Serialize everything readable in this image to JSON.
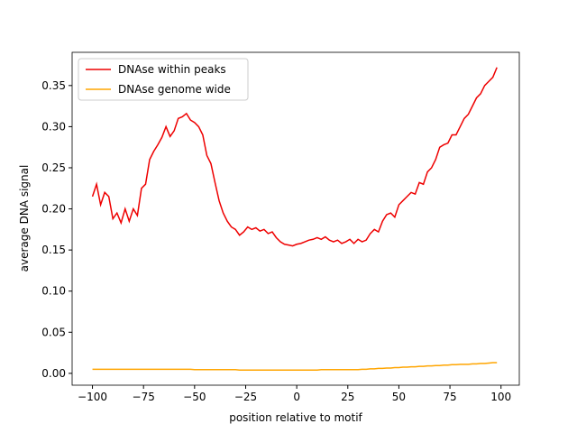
{
  "chart_data": {
    "type": "line",
    "xlabel": "position relative to motif",
    "ylabel": "average DNA signal",
    "x": [
      -100,
      -98,
      -96,
      -94,
      -92,
      -90,
      -88,
      -86,
      -84,
      -82,
      -80,
      -78,
      -76,
      -74,
      -72,
      -70,
      -68,
      -66,
      -64,
      -62,
      -60,
      -58,
      -56,
      -54,
      -52,
      -50,
      -48,
      -46,
      -44,
      -42,
      -40,
      -38,
      -36,
      -34,
      -32,
      -30,
      -28,
      -26,
      -24,
      -22,
      -20,
      -18,
      -16,
      -14,
      -12,
      -10,
      -8,
      -6,
      -4,
      -2,
      0,
      2,
      4,
      6,
      8,
      10,
      12,
      14,
      16,
      18,
      20,
      22,
      24,
      26,
      28,
      30,
      32,
      34,
      36,
      38,
      40,
      42,
      44,
      46,
      48,
      50,
      52,
      54,
      56,
      58,
      60,
      62,
      64,
      66,
      68,
      70,
      72,
      74,
      76,
      78,
      80,
      82,
      84,
      86,
      88,
      90,
      92,
      94,
      96,
      98
    ],
    "series": [
      {
        "name": "DNAse within peaks",
        "color": "#ee0000",
        "values": [
          0.215,
          0.23,
          0.205,
          0.22,
          0.215,
          0.188,
          0.195,
          0.183,
          0.2,
          0.185,
          0.2,
          0.192,
          0.225,
          0.23,
          0.26,
          0.27,
          0.278,
          0.287,
          0.3,
          0.288,
          0.295,
          0.31,
          0.312,
          0.316,
          0.308,
          0.305,
          0.3,
          0.29,
          0.265,
          0.255,
          0.232,
          0.21,
          0.195,
          0.185,
          0.178,
          0.175,
          0.168,
          0.172,
          0.178,
          0.175,
          0.177,
          0.173,
          0.175,
          0.17,
          0.172,
          0.165,
          0.16,
          0.157,
          0.156,
          0.155,
          0.157,
          0.158,
          0.16,
          0.162,
          0.163,
          0.165,
          0.163,
          0.166,
          0.162,
          0.16,
          0.162,
          0.158,
          0.16,
          0.163,
          0.158,
          0.163,
          0.16,
          0.162,
          0.17,
          0.175,
          0.172,
          0.185,
          0.193,
          0.195,
          0.19,
          0.205,
          0.21,
          0.215,
          0.22,
          0.218,
          0.232,
          0.23,
          0.245,
          0.25,
          0.26,
          0.275,
          0.278,
          0.28,
          0.29,
          0.29,
          0.3,
          0.31,
          0.315,
          0.325,
          0.335,
          0.34,
          0.35,
          0.355,
          0.36,
          0.372
        ]
      },
      {
        "name": "DNAse genome wide",
        "color": "#ffa500",
        "values": [
          0.005,
          0.005,
          0.005,
          0.005,
          0.005,
          0.005,
          0.005,
          0.005,
          0.005,
          0.005,
          0.005,
          0.005,
          0.005,
          0.005,
          0.005,
          0.005,
          0.005,
          0.005,
          0.005,
          0.005,
          0.005,
          0.005,
          0.005,
          0.005,
          0.005,
          0.0045,
          0.0045,
          0.0045,
          0.0045,
          0.0045,
          0.0045,
          0.0045,
          0.0045,
          0.0045,
          0.0045,
          0.0045,
          0.004,
          0.004,
          0.004,
          0.004,
          0.004,
          0.004,
          0.004,
          0.004,
          0.004,
          0.004,
          0.004,
          0.004,
          0.004,
          0.004,
          0.004,
          0.004,
          0.004,
          0.004,
          0.004,
          0.004,
          0.0045,
          0.0045,
          0.0045,
          0.0045,
          0.0045,
          0.0045,
          0.0045,
          0.0045,
          0.0045,
          0.0045,
          0.005,
          0.005,
          0.0055,
          0.0055,
          0.006,
          0.006,
          0.0065,
          0.0065,
          0.007,
          0.007,
          0.0075,
          0.0075,
          0.008,
          0.008,
          0.0085,
          0.0085,
          0.009,
          0.009,
          0.0095,
          0.0095,
          0.01,
          0.01,
          0.0105,
          0.0105,
          0.011,
          0.011,
          0.011,
          0.0115,
          0.0115,
          0.012,
          0.012,
          0.0125,
          0.013,
          0.013
        ]
      }
    ],
    "xlim": [
      -109.95,
      108.95
    ],
    "ylim": [
      -0.0144,
      0.3904
    ],
    "xticks": [
      {
        "value": -100,
        "label": "−100"
      },
      {
        "value": -75,
        "label": "−75"
      },
      {
        "value": -50,
        "label": "−50"
      },
      {
        "value": -25,
        "label": "−25"
      },
      0,
      25,
      50,
      75,
      100
    ],
    "yticks": [
      {
        "value": 0,
        "label": "0.00"
      },
      {
        "value": 0.05,
        "label": "0.05"
      },
      {
        "value": 0.1,
        "label": "0.10"
      },
      {
        "value": 0.15,
        "label": "0.15"
      },
      {
        "value": 0.2,
        "label": "0.20"
      },
      {
        "value": 0.25,
        "label": "0.25"
      },
      {
        "value": 0.3,
        "label": "0.30"
      },
      {
        "value": 0.35,
        "label": "0.35"
      }
    ],
    "legend": "upper left"
  }
}
